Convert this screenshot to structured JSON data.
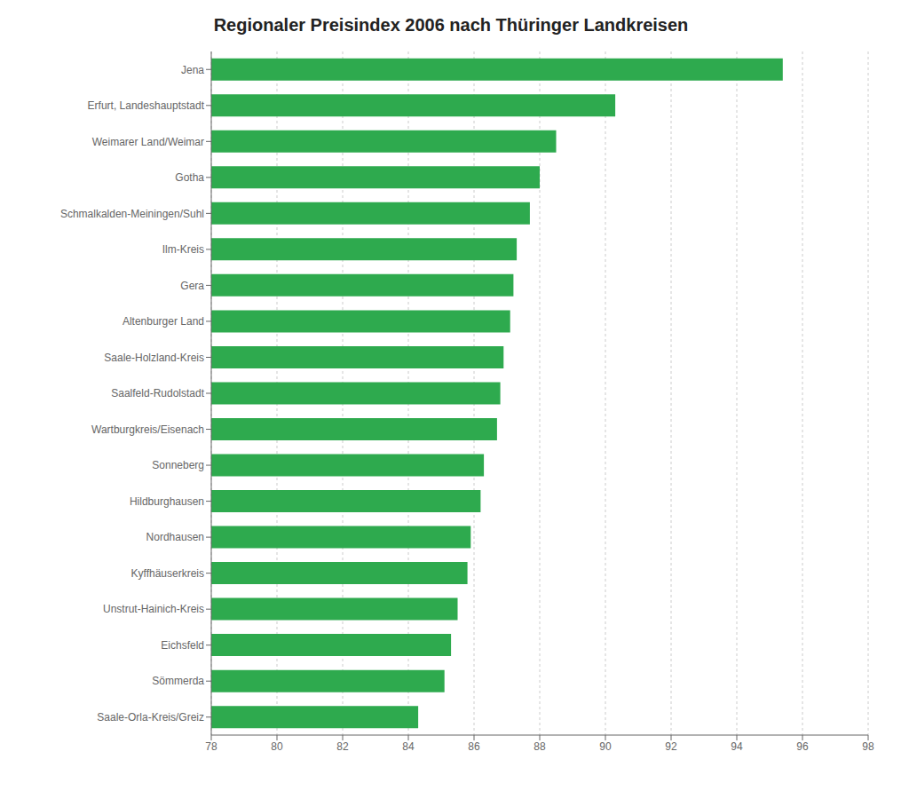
{
  "chart_data": {
    "type": "bar",
    "title": "Regionaler Preisindex 2006 nach Thüringer Landkreisen",
    "orientation": "horizontal",
    "categories": [
      "Jena",
      "Erfurt, Landeshauptstadt",
      "Weimarer Land/Weimar",
      "Gotha",
      "Schmalkalden-Meiningen/Suhl",
      "Ilm-Kreis",
      "Gera",
      "Altenburger Land",
      "Saale-Holzland-Kreis",
      "Saalfeld-Rudolstadt",
      "Wartburgkreis/Eisenach",
      "Sonneberg",
      "Hildburghausen",
      "Nordhausen",
      "Kyffhäuserkreis",
      "Unstrut-Hainich-Kreis",
      "Eichsfeld",
      "Sömmerda",
      "Saale-Orla-Kreis/Greiz"
    ],
    "values": [
      95.4,
      90.3,
      88.5,
      88.0,
      87.7,
      87.3,
      87.2,
      87.1,
      86.9,
      86.8,
      86.7,
      86.3,
      86.2,
      85.9,
      85.8,
      85.5,
      85.3,
      85.1,
      84.3
    ],
    "color": "#2eaa4e",
    "xlim": [
      78,
      98
    ],
    "xticks": [
      78,
      80,
      82,
      84,
      86,
      88,
      90,
      92,
      94,
      96,
      98
    ],
    "grid": true
  }
}
